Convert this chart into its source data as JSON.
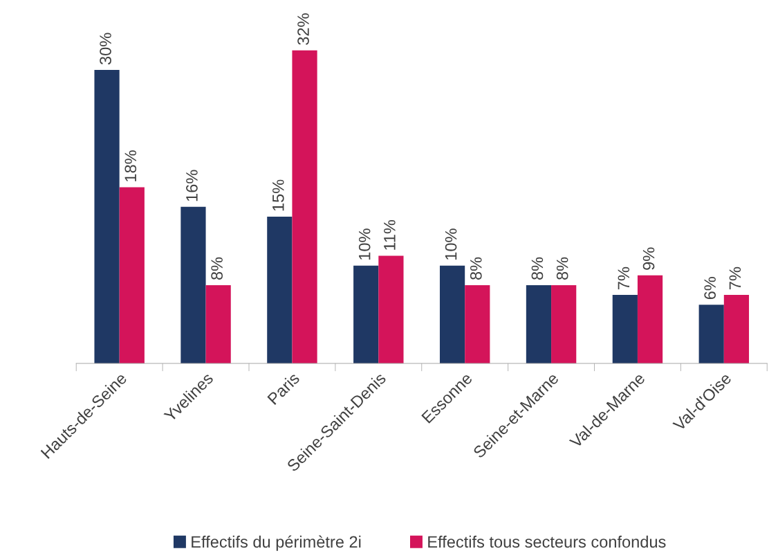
{
  "chart_data": {
    "type": "bar",
    "categories": [
      "Hauts-de-Seine",
      "Yvelines",
      "Paris",
      "Seine-Saint-Denis",
      "Essonne",
      "Seine-et-Marne",
      "Val-de-Marne",
      "Val-d'Oise"
    ],
    "series": [
      {
        "name": "Effectifs du périmètre 2i",
        "color": "#1f3864",
        "values": [
          30,
          16,
          15,
          10,
          10,
          8,
          7,
          6
        ],
        "value_labels": [
          "30%",
          "16%",
          "15%",
          "10%",
          "10%",
          "8%",
          "7%",
          "6%"
        ]
      },
      {
        "name": "Effectifs tous secteurs confondus",
        "color": "#d4145a",
        "values": [
          18,
          8,
          32,
          11,
          8,
          8,
          9,
          7
        ],
        "value_labels": [
          "18%",
          "8%",
          "32%",
          "11%",
          "8%",
          "8%",
          "9%",
          "7%"
        ]
      }
    ],
    "legend": "bottom",
    "tick_labels": "x"
  }
}
